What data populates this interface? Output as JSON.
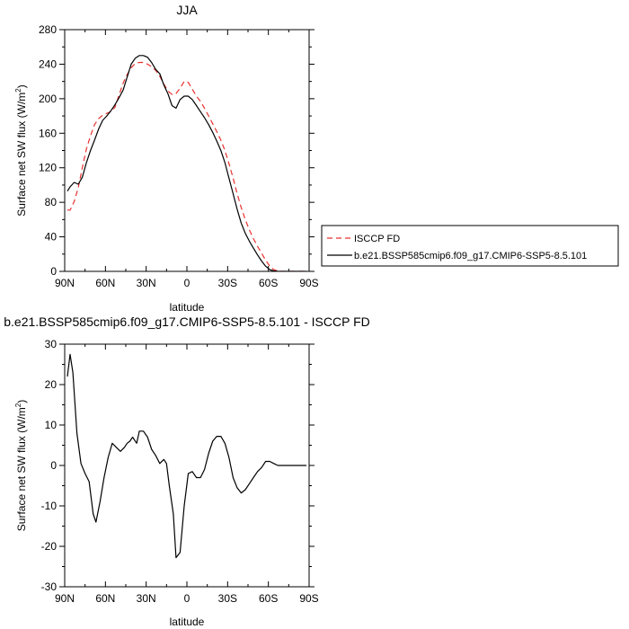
{
  "chart_data": [
    {
      "type": "line",
      "title": "JJA",
      "xlabel": "latitude",
      "ylabel": "Surface net SW flux (W/m²)",
      "ylabel_parts": [
        "Surface net SW flux (W/m",
        "2",
        ")"
      ],
      "xlim": [
        90,
        -90
      ],
      "ylim": [
        0,
        280
      ],
      "xticks": [
        90,
        60,
        30,
        0,
        -30,
        -60,
        -90
      ],
      "xtick_labels": [
        "90N",
        "60N",
        "30N",
        "0",
        "30S",
        "60S",
        "90S"
      ],
      "yticks": [
        0,
        40,
        80,
        120,
        160,
        200,
        240,
        280
      ],
      "ytick_labels": [
        "0",
        "40",
        "80",
        "120",
        "160",
        "200",
        "240",
        "280"
      ],
      "legend_position": "right",
      "series": [
        {
          "name": "ISCCP FD",
          "color": "#e8312f",
          "dash": "dashed",
          "x": [
            88,
            86,
            83,
            80,
            77,
            74,
            71,
            68,
            65,
            62,
            59,
            56,
            53,
            50,
            47,
            44,
            41,
            38,
            35,
            32,
            29,
            26,
            23,
            20,
            17,
            14,
            11,
            8,
            5,
            2,
            -1,
            -4,
            -7,
            -10,
            -13,
            -16,
            -19,
            -22,
            -25,
            -28,
            -31,
            -34,
            -37,
            -40,
            -43,
            -46,
            -49,
            -52,
            -55,
            -58,
            -61,
            -64,
            -67,
            -70,
            -73,
            -76,
            -79,
            -82,
            -85,
            -88
          ],
          "y": [
            71,
            71,
            81,
            97,
            120,
            142,
            157,
            170,
            177,
            181,
            183,
            185,
            190,
            204,
            218,
            228,
            236,
            241,
            242,
            242,
            240,
            237,
            233,
            226,
            217,
            209,
            205,
            206,
            212,
            220,
            219,
            211,
            203,
            197,
            189,
            180,
            171,
            162,
            152,
            140,
            125,
            108,
            90,
            74,
            60,
            48,
            38,
            29,
            21,
            13,
            6,
            2,
            0.5,
            0,
            0,
            0,
            0,
            0,
            0,
            0
          ]
        },
        {
          "name": "b.e21.BSSP585cmip6.f09_g17.CMIP6-SSP5-8.5.101",
          "color": "#000000",
          "dash": "solid",
          "x": [
            88,
            86,
            83,
            80,
            77,
            74,
            71,
            68,
            65,
            62,
            59,
            56,
            53,
            50,
            47,
            44,
            41,
            38,
            35,
            32,
            29,
            26,
            23,
            20,
            17,
            14,
            11,
            8,
            5,
            2,
            -1,
            -4,
            -7,
            -10,
            -13,
            -16,
            -19,
            -22,
            -25,
            -28,
            -31,
            -34,
            -37,
            -40,
            -43,
            -46,
            -49,
            -52,
            -55,
            -58,
            -61,
            -64,
            -67,
            -70,
            -73,
            -76,
            -79,
            -82,
            -85,
            -88
          ],
          "y": [
            93,
            98,
            103,
            101,
            109,
            126,
            140,
            152,
            165,
            175,
            180,
            186,
            193,
            201,
            210,
            225,
            240,
            247,
            250,
            250,
            248,
            242,
            234,
            229,
            216,
            206,
            192,
            189,
            199,
            203,
            203,
            199,
            192,
            185,
            178,
            170,
            161,
            151,
            140,
            126,
            108,
            90,
            72,
            56,
            44,
            35,
            27,
            19,
            12,
            6,
            2,
            0.5,
            0,
            0,
            0,
            0,
            0,
            0,
            0,
            0
          ]
        }
      ]
    },
    {
      "type": "line",
      "title": "b.e21.BSSP585cmip6.f09_g17.CMIP6-SSP5-8.5.101 - ISCCP FD",
      "xlabel": "latitude",
      "ylabel": "Surface net SW flux (W/m²)",
      "ylabel_parts": [
        "Surface net SW flux (W/m",
        "2",
        ")"
      ],
      "xlim": [
        90,
        -90
      ],
      "ylim": [
        -30,
        30
      ],
      "xticks": [
        90,
        60,
        30,
        0,
        -30,
        -60,
        -90
      ],
      "xtick_labels": [
        "90N",
        "60N",
        "30N",
        "0",
        "30S",
        "60S",
        "90S"
      ],
      "yticks": [
        -30,
        -20,
        -10,
        0,
        10,
        20,
        30
      ],
      "ytick_labels": [
        "-30",
        "-20",
        "-10",
        "0",
        "10",
        "20",
        "30"
      ],
      "series": [
        {
          "color": "#000000",
          "dash": "solid",
          "x": [
            88,
            86,
            84,
            81,
            78,
            75,
            72,
            69,
            67,
            64,
            61,
            58,
            55,
            52,
            49,
            46,
            44,
            42,
            40,
            37,
            35,
            32,
            29,
            26,
            23,
            20,
            17,
            15,
            13,
            10,
            8,
            5,
            2,
            -1,
            -4,
            -7,
            -10,
            -13,
            -16,
            -19,
            -22,
            -25,
            -28,
            -31,
            -34,
            -37,
            -40,
            -43,
            -46,
            -49,
            -52,
            -55,
            -58,
            -61,
            -64,
            -67,
            -70,
            -73,
            -76,
            -79,
            -82,
            -85,
            -88
          ],
          "y": [
            22,
            27.5,
            23,
            8,
            0.5,
            -2,
            -4,
            -12,
            -14,
            -9,
            -3,
            2,
            5.5,
            4.5,
            3.5,
            4.5,
            5.5,
            6,
            7,
            5.5,
            8.5,
            8.5,
            7,
            4,
            2.5,
            0.5,
            1.5,
            0.5,
            -5,
            -12,
            -22.8,
            -21.5,
            -10,
            -2,
            -1.5,
            -3,
            -3,
            -1,
            3,
            6,
            7.2,
            7.2,
            5.5,
            2,
            -3,
            -5.5,
            -6.8,
            -6,
            -4.5,
            -3,
            -1.5,
            -0.5,
            1,
            1,
            0.5,
            0,
            0,
            0,
            0,
            0,
            0,
            0,
            0
          ]
        }
      ]
    }
  ]
}
